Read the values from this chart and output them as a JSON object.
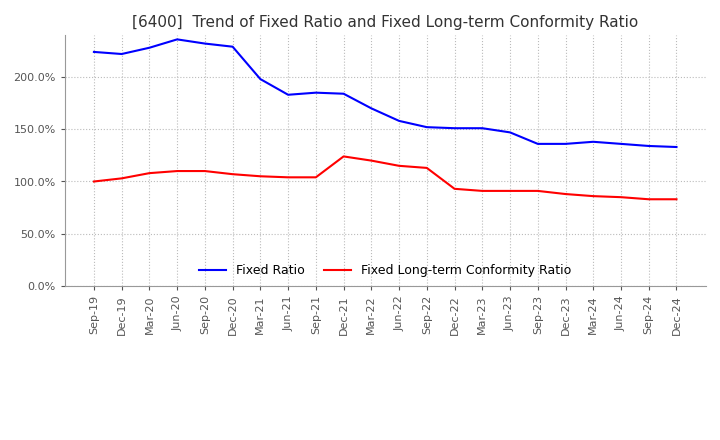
{
  "title": "[6400]  Trend of Fixed Ratio and Fixed Long-term Conformity Ratio",
  "x_labels": [
    "Sep-19",
    "Dec-19",
    "Mar-20",
    "Jun-20",
    "Sep-20",
    "Dec-20",
    "Mar-21",
    "Jun-21",
    "Sep-21",
    "Dec-21",
    "Mar-22",
    "Jun-22",
    "Sep-22",
    "Dec-22",
    "Mar-23",
    "Jun-23",
    "Sep-23",
    "Dec-23",
    "Mar-24",
    "Jun-24",
    "Sep-24",
    "Dec-24"
  ],
  "fixed_ratio": [
    224,
    222,
    228,
    236,
    232,
    229,
    198,
    183,
    185,
    184,
    170,
    158,
    152,
    151,
    151,
    147,
    136,
    136,
    138,
    136,
    134,
    133
  ],
  "fixed_lt_ratio": [
    100,
    103,
    108,
    110,
    110,
    107,
    105,
    104,
    104,
    124,
    120,
    115,
    113,
    93,
    91,
    91,
    91,
    88,
    86,
    85,
    83,
    83
  ],
  "fixed_ratio_color": "#0000ff",
  "fixed_lt_ratio_color": "#ff0000",
  "background_color": "#ffffff",
  "grid_color": "#bbbbbb",
  "ylim": [
    0,
    240
  ],
  "yticks": [
    0,
    50,
    100,
    150,
    200
  ],
  "ytick_labels": [
    "0.0%",
    "50.0%",
    "100.0%",
    "150.0%",
    "200.0%"
  ],
  "legend_fixed_ratio": "Fixed Ratio",
  "legend_fixed_lt_ratio": "Fixed Long-term Conformity Ratio",
  "title_fontsize": 11,
  "tick_fontsize": 8,
  "legend_fontsize": 9,
  "line_width": 1.5
}
